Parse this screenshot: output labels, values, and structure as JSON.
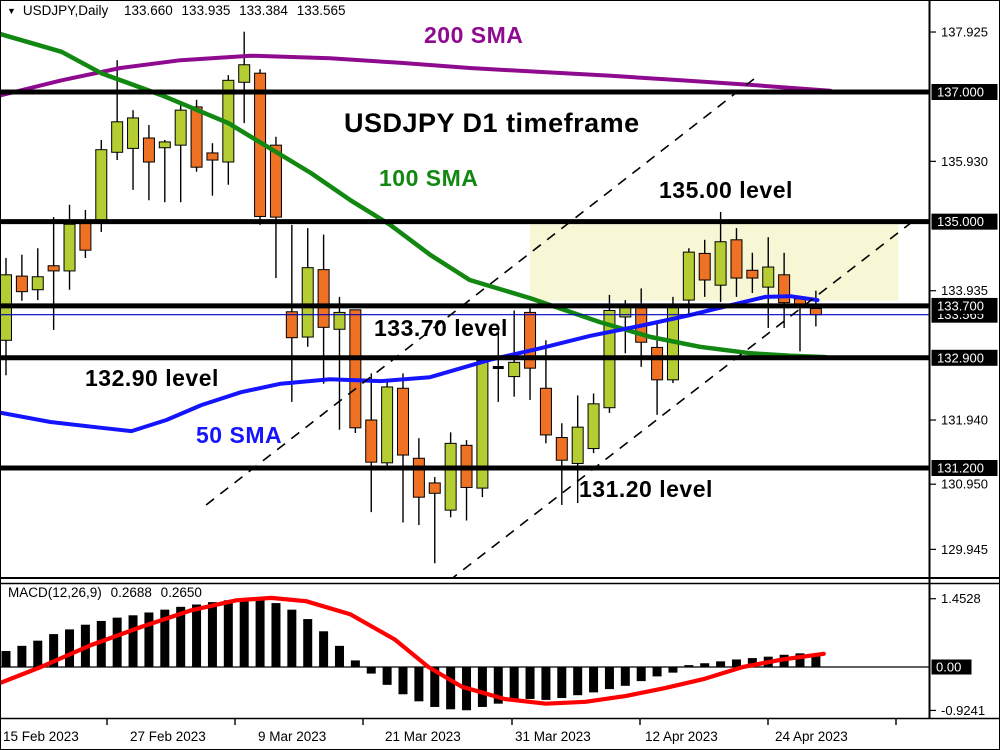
{
  "title": {
    "dropdown_icon": "▼",
    "symbol": "USDJPY,Daily",
    "open": "133.660",
    "high": "133.935",
    "low": "133.384",
    "close": "133.565"
  },
  "annotations": {
    "sma200": "200 SMA",
    "headline": "USDJPY D1 timeframe",
    "sma100": "100 SMA",
    "level135": "135.00 level",
    "level1337": "133.70 level",
    "level1329": "132.90 level",
    "sma50": "50 SMA",
    "level1312": "131.20 level"
  },
  "macd_label": {
    "name": "MACD(12,26,9)",
    "main": "0.2688",
    "signal": "0.2650"
  },
  "colors": {
    "bull": "#b5cc33",
    "bear": "#ef7123",
    "sma50": "#1414ff",
    "sma100": "#128812",
    "sma200": "#8e0a8e",
    "signal": "#ff0000",
    "histogram": "#000000",
    "level_line": "#000000",
    "price_line": "#0000bb",
    "highlight": "#f7f7d5",
    "axis_text": "#000000",
    "label_box": "#000000",
    "label_box_text": "#ffffff"
  },
  "chart_data": [
    {
      "type": "candlestick",
      "symbol": "USDJPY",
      "timeframe": "Daily",
      "title": "USDJPY D1 timeframe",
      "x_labels": [
        "15 Feb 2023",
        "27 Feb 2023",
        "9 Mar 2023",
        "21 Mar 2023",
        "31 Mar 2023",
        "12 Apr 2023",
        "24 Apr 2023"
      ],
      "price_ticks": [
        "137.925",
        "135.930",
        "133.935",
        "131.940",
        "130.950",
        "129.945"
      ],
      "level_labels": [
        "137.000",
        "135.000",
        "133.700",
        "132.900",
        "131.200"
      ],
      "current_price": "133.565",
      "ylim": [
        129.2,
        138.2
      ],
      "grid": false,
      "ohlc_columns": [
        "open",
        "high",
        "low",
        "close"
      ],
      "ohlc": [
        [
          133.17,
          134.44,
          132.63,
          134.18
        ],
        [
          134.16,
          134.49,
          133.78,
          133.92
        ],
        [
          133.95,
          134.59,
          133.79,
          134.15
        ],
        [
          134.32,
          135.07,
          133.33,
          134.24
        ],
        [
          134.24,
          135.26,
          133.95,
          134.96
        ],
        [
          134.99,
          135.18,
          134.44,
          134.56
        ],
        [
          134.99,
          136.26,
          134.84,
          136.11
        ],
        [
          136.07,
          137.49,
          135.95,
          136.54
        ],
        [
          136.13,
          136.72,
          135.49,
          136.6
        ],
        [
          136.29,
          136.49,
          135.33,
          135.92
        ],
        [
          136.14,
          136.26,
          135.3,
          136.23
        ],
        [
          136.18,
          136.83,
          135.3,
          136.72
        ],
        [
          136.77,
          136.88,
          135.77,
          135.84
        ],
        [
          136.06,
          136.21,
          135.4,
          135.95
        ],
        [
          135.92,
          137.26,
          135.57,
          137.18
        ],
        [
          137.15,
          137.93,
          136.52,
          137.42
        ],
        [
          137.29,
          137.35,
          134.95,
          135.08
        ],
        [
          136.18,
          136.31,
          134.13,
          135.07
        ],
        [
          133.61,
          134.95,
          132.22,
          133.21
        ],
        [
          133.22,
          134.9,
          133.07,
          134.29
        ],
        [
          134.26,
          134.8,
          132.5,
          133.37
        ],
        [
          133.34,
          133.84,
          131.79,
          133.6
        ],
        [
          133.64,
          133.64,
          131.74,
          131.82
        ],
        [
          131.94,
          132.66,
          130.52,
          131.29
        ],
        [
          131.28,
          132.56,
          131.17,
          132.45
        ],
        [
          132.43,
          132.66,
          130.36,
          131.4
        ],
        [
          131.35,
          131.66,
          130.32,
          130.75
        ],
        [
          130.97,
          131.06,
          129.73,
          130.81
        ],
        [
          130.55,
          131.75,
          130.44,
          131.58
        ],
        [
          131.55,
          131.63,
          130.39,
          130.9
        ],
        [
          130.89,
          132.91,
          130.75,
          132.86
        ],
        [
          132.75,
          133.33,
          132.22,
          132.75
        ],
        [
          132.61,
          133.63,
          132.3,
          132.83
        ],
        [
          133.6,
          133.7,
          132.25,
          132.74
        ],
        [
          132.43,
          133.17,
          131.58,
          131.71
        ],
        [
          131.67,
          131.89,
          130.63,
          131.32
        ],
        [
          131.27,
          132.32,
          130.66,
          131.83
        ],
        [
          131.5,
          132.35,
          131.43,
          132.19
        ],
        [
          132.13,
          133.87,
          132.05,
          133.63
        ],
        [
          133.53,
          133.79,
          132.97,
          133.68
        ],
        [
          133.67,
          133.97,
          132.76,
          133.14
        ],
        [
          133.06,
          133.44,
          132.02,
          132.56
        ],
        [
          132.56,
          133.84,
          132.51,
          133.68
        ],
        [
          133.79,
          134.59,
          133.56,
          134.53
        ],
        [
          134.51,
          134.72,
          133.84,
          134.1
        ],
        [
          134.02,
          135.15,
          133.76,
          134.69
        ],
        [
          134.72,
          134.9,
          133.84,
          134.13
        ],
        [
          134.25,
          134.52,
          133.9,
          134.13
        ],
        [
          133.99,
          134.76,
          133.36,
          134.3
        ],
        [
          134.18,
          134.52,
          133.36,
          133.75
        ],
        [
          133.81,
          133.81,
          133.0,
          133.72
        ],
        [
          133.66,
          133.935,
          133.384,
          133.565
        ]
      ],
      "levels": [
        137.0,
        135.0,
        133.7,
        132.9,
        131.2
      ],
      "sma200": [
        [
          -0.3,
          136.95
        ],
        [
          3.5,
          137.18
        ],
        [
          7.2,
          137.37
        ],
        [
          11,
          137.49
        ],
        [
          15.4,
          137.56
        ],
        [
          20.4,
          137.52
        ],
        [
          24.8,
          137.45
        ],
        [
          29.2,
          137.37
        ],
        [
          33.6,
          137.31
        ],
        [
          38.1,
          137.25
        ],
        [
          42.5,
          137.18
        ],
        [
          46.9,
          137.11
        ],
        [
          51.9,
          137.02
        ]
      ],
      "sma100": [
        [
          -0.3,
          137.89
        ],
        [
          3.5,
          137.62
        ],
        [
          6,
          137.29
        ],
        [
          9.8,
          136.95
        ],
        [
          14,
          136.52
        ],
        [
          19.2,
          135.75
        ],
        [
          21.7,
          135.33
        ],
        [
          24.2,
          134.95
        ],
        [
          26.7,
          134.49
        ],
        [
          29.2,
          134.1
        ],
        [
          33,
          133.82
        ],
        [
          37.4,
          133.45
        ],
        [
          40.6,
          133.22
        ],
        [
          43.7,
          133.07
        ],
        [
          46.9,
          132.97
        ],
        [
          49.4,
          132.93
        ],
        [
          51.6,
          132.91
        ]
      ],
      "sma50": [
        [
          -0.3,
          132.05
        ],
        [
          2.8,
          131.91
        ],
        [
          6,
          131.82
        ],
        [
          7.9,
          131.77
        ],
        [
          10.1,
          131.94
        ],
        [
          12.3,
          132.17
        ],
        [
          14.8,
          132.37
        ],
        [
          17.3,
          132.5
        ],
        [
          20.4,
          132.57
        ],
        [
          23.6,
          132.54
        ],
        [
          26.7,
          132.6
        ],
        [
          30.5,
          132.87
        ],
        [
          33.7,
          133.05
        ],
        [
          36.8,
          133.24
        ],
        [
          39.9,
          133.39
        ],
        [
          43.1,
          133.56
        ],
        [
          45.6,
          133.71
        ],
        [
          47.8,
          133.84
        ],
        [
          49.4,
          133.85
        ],
        [
          51.1,
          133.79
        ]
      ],
      "trendlines": [
        {
          "from": [
            12.6,
            130.63
          ],
          "to": [
            47.2,
            137.22
          ]
        },
        {
          "from": [
            27.0,
            129.29
          ],
          "to": [
            57.4,
            135.06
          ]
        }
      ],
      "highlight_box": {
        "from_i": 33,
        "to_i": 56.2,
        "top": 134.96,
        "bottom": 133.78
      }
    },
    {
      "type": "bar",
      "name": "MACD(12,26,9)",
      "main_value": 0.2688,
      "signal_value": 0.265,
      "y_ticks": [
        "1.4528",
        "0.00",
        "-0.9241"
      ],
      "zero_level": "0.00",
      "histogram": [
        0.34,
        0.45,
        0.56,
        0.7,
        0.8,
        0.9,
        0.98,
        1.05,
        1.1,
        1.16,
        1.22,
        1.28,
        1.33,
        1.38,
        1.42,
        1.45,
        1.43,
        1.36,
        1.22,
        1.02,
        0.76,
        0.45,
        0.14,
        -0.14,
        -0.38,
        -0.58,
        -0.73,
        -0.85,
        -0.9,
        -0.92,
        -0.85,
        -0.78,
        -0.72,
        -0.68,
        -0.7,
        -0.66,
        -0.6,
        -0.54,
        -0.47,
        -0.4,
        -0.3,
        -0.2,
        -0.12,
        0.04,
        0.08,
        0.12,
        0.16,
        0.19,
        0.22,
        0.26,
        0.29,
        0.2688
      ],
      "signal_line": [
        [
          -0.3,
          -0.33
        ],
        [
          2.2,
          0
        ],
        [
          5.3,
          0.46
        ],
        [
          8.5,
          0.85
        ],
        [
          11.6,
          1.2
        ],
        [
          14.5,
          1.42
        ],
        [
          16.7,
          1.47
        ],
        [
          18.9,
          1.4
        ],
        [
          21.7,
          1.12
        ],
        [
          24.5,
          0.58
        ],
        [
          26.6,
          0
        ],
        [
          28.7,
          -0.42
        ],
        [
          31.4,
          -0.68
        ],
        [
          34,
          -0.78
        ],
        [
          36.5,
          -0.74
        ],
        [
          39,
          -0.62
        ],
        [
          41.5,
          -0.45
        ],
        [
          44,
          -0.25
        ],
        [
          46.4,
          0
        ],
        [
          48.9,
          0.16
        ],
        [
          51.5,
          0.28
        ]
      ]
    }
  ]
}
